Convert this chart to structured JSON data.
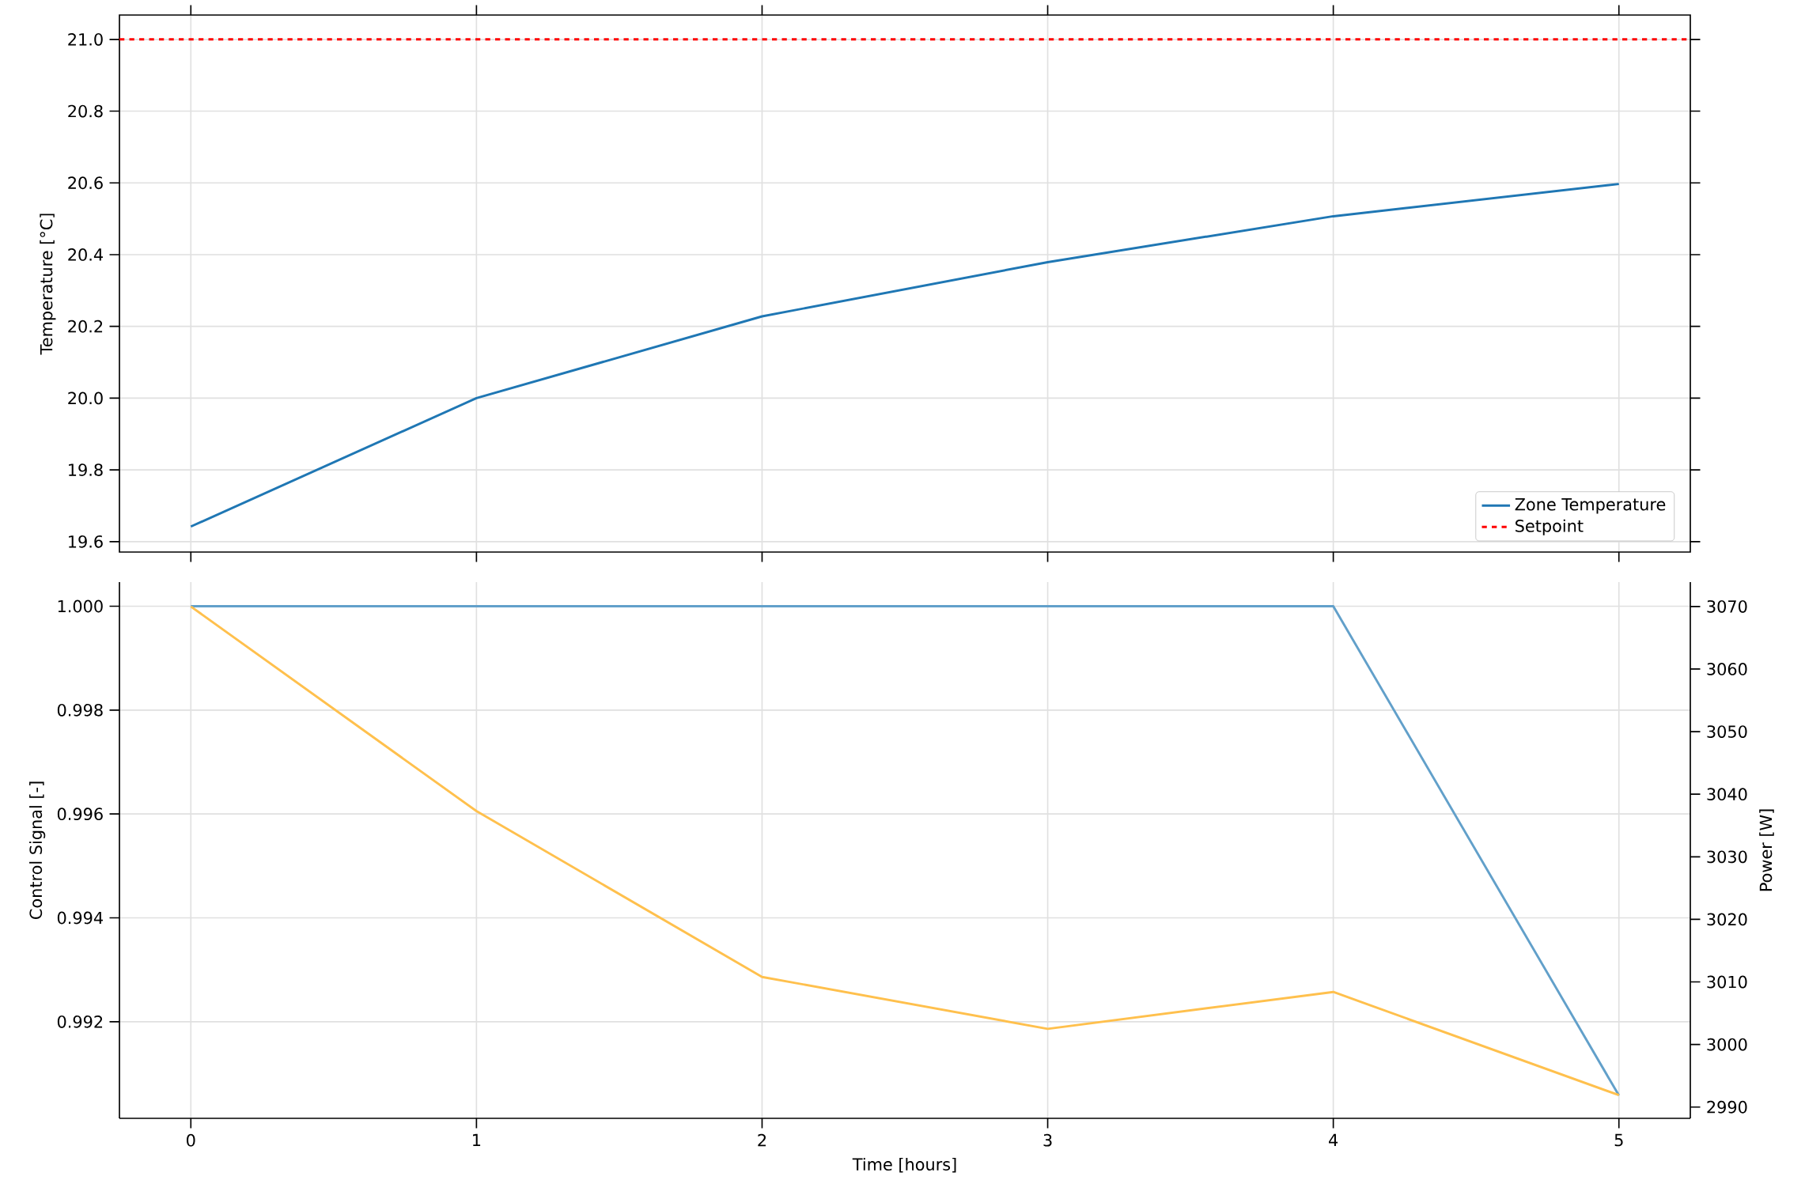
{
  "chart_data": [
    {
      "type": "line",
      "x": [
        0,
        1,
        2,
        3,
        4,
        5
      ],
      "ylabel": "Temperature [°C]",
      "series": [
        {
          "name": "Zone Temperature",
          "color": "#1f77b4",
          "values": [
            19.642,
            20.0,
            20.228,
            20.379,
            20.507,
            20.597
          ]
        }
      ],
      "ref_lines": [
        {
          "axis": "y",
          "value": 21.0,
          "label": "Setpoint",
          "color": "#ff0000",
          "line_style": "dashed"
        }
      ],
      "xlim": [
        -0.25,
        5.25
      ],
      "ylim": [
        19.571,
        21.068
      ],
      "xticks": [
        0,
        1,
        2,
        3,
        4,
        5
      ],
      "yticks": [
        {
          "value": 19.6,
          "label": "19.6"
        },
        {
          "value": 19.8,
          "label": "19.8"
        },
        {
          "value": 20.0,
          "label": "20.0"
        },
        {
          "value": 20.2,
          "label": "20.2"
        },
        {
          "value": 20.4,
          "label": "20.4"
        },
        {
          "value": 20.6,
          "label": "20.6"
        },
        {
          "value": 20.8,
          "label": "20.8"
        },
        {
          "value": 21.0,
          "label": "21.0"
        }
      ],
      "grid": true,
      "legend": "bottom right",
      "tick_labels": "y"
    },
    {
      "type": "line",
      "x": [
        0,
        1,
        2,
        3,
        4,
        5
      ],
      "xlabel": "Time [hours]",
      "ylabel": "Control Signal [-]",
      "y2label": "Power [W]",
      "series": [
        {
          "color": "#62a0ca",
          "values": [
            1.0,
            1.0,
            1.0,
            1.0,
            1.0,
            0.99058
          ]
        },
        {
          "color": "#ffc04d",
          "axis": "y2",
          "values": [
            3070.0,
            3037.3,
            3010.8,
            3002.5,
            3008.4,
            2991.9
          ]
        }
      ],
      "xlim": [
        -0.25,
        5.25
      ],
      "ylim": [
        0.99014,
        1.000465
      ],
      "y2lim": [
        2988.2,
        3073.9
      ],
      "xticks": [
        0,
        1,
        2,
        3,
        4,
        5
      ],
      "yticks": [
        {
          "value": 0.992,
          "label": "0.992"
        },
        {
          "value": 0.994,
          "label": "0.994"
        },
        {
          "value": 0.996,
          "label": "0.996"
        },
        {
          "value": 0.998,
          "label": "0.998"
        },
        {
          "value": 1.0,
          "label": "1.000"
        }
      ],
      "y2ticks": [
        2990,
        3000,
        3010,
        3020,
        3030,
        3040,
        3050,
        3060,
        3070
      ],
      "grid": true
    }
  ]
}
